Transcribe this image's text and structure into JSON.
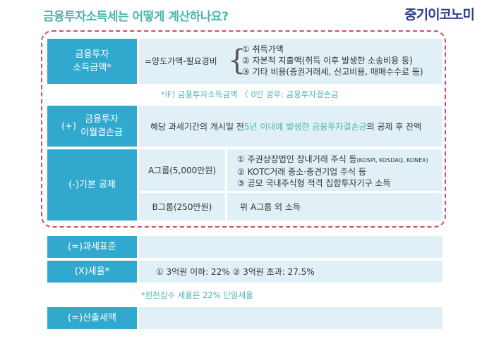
{
  "title": "금융투자소득세는 어떻게 계산하나요?",
  "logo": "중기이코노미",
  "income": {
    "label_line1": "금융투자",
    "label_line2": "소득금액*",
    "formula": "=양도가액-필요경비",
    "items": [
      "① 취득가액",
      "② 자본적 지출액(취득 이후 발생한 소송비용 등)",
      "③ 기타 비용(증권거래세, 신고비용, 매매수수료 등)"
    ]
  },
  "note_if": "*IF) 금융투자소득금액 〈 0인 경우: 금융투자결손금",
  "loss": {
    "label_prefix": "(+)",
    "label_line1": "금융투자",
    "label_line2": "이월결손금",
    "text_before": "해당 과세기간의 개시일 전 ",
    "text_highlight": "5년 이내에 발생한 금융투자결손금",
    "text_after": "의 공제 후 잔액"
  },
  "deduction": {
    "label": "(-)기본 공제",
    "group_a": "A그룹(5,000만원)",
    "group_a_item1": "① 주권상장법인 장내거래 주식 등",
    "group_a_item1_small": "(KOSPI, KOSDAQ, KONEX)",
    "group_a_item2": "② KOTC거래 중소·중견기업 주식 등",
    "group_a_item3": "③ 공모 국내주식형 적격 집합투자기구 소득",
    "group_b": "B그룹(250만원)",
    "group_b_desc": "위 A그룹 외 소득"
  },
  "tax_base": {
    "label": "(=)과세표준"
  },
  "tax_rate": {
    "label": "(X)세율*",
    "desc": "① 3억원 이하: 22% ② 3억원 초과: 27.5%"
  },
  "note_rate": "*원천징수 세율은 22% 단일세율",
  "tax_amount": {
    "label": "(=)산출세액"
  }
}
